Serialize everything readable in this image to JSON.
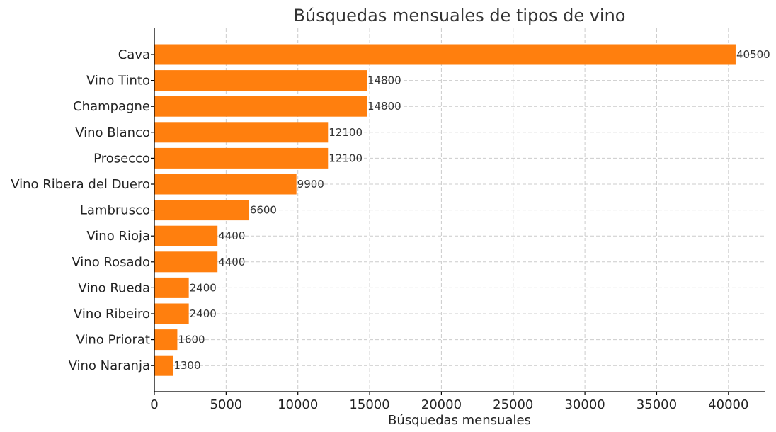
{
  "chart_data": {
    "type": "bar",
    "orientation": "horizontal",
    "title": "Búsquedas mensuales de tipos de vino",
    "xlabel": "Búsquedas mensuales",
    "ylabel": "",
    "categories": [
      "Cava",
      "Vino Tinto",
      "Champagne",
      "Vino Blanco",
      "Prosecco",
      "Vino Ribera del Duero",
      "Lambrusco",
      "Vino Rioja",
      "Vino Rosado",
      "Vino Rueda",
      "Vino Ribeiro",
      "Vino Priorat",
      "Vino Naranja"
    ],
    "values": [
      40500,
      14800,
      14800,
      12100,
      12100,
      9900,
      6600,
      4400,
      4400,
      2400,
      2400,
      1600,
      1300
    ],
    "xlim": [
      0,
      42525
    ],
    "xticks": [
      0,
      5000,
      10000,
      15000,
      20000,
      25000,
      30000,
      35000,
      40000
    ],
    "grid": true,
    "bar_color": "#ff7f0e",
    "data_labels": true
  }
}
